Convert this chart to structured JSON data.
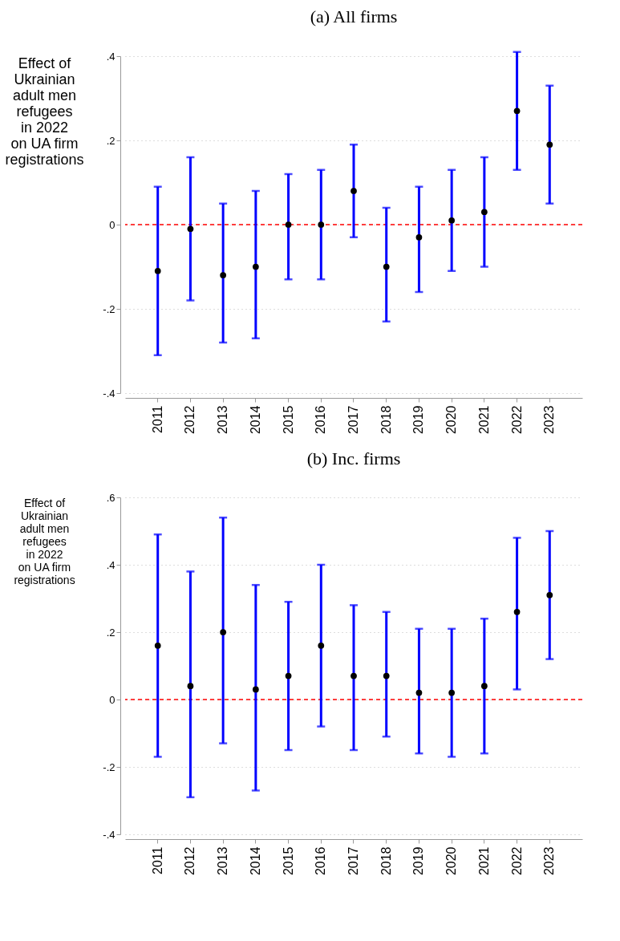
{
  "chart_data": [
    {
      "type": "scatter",
      "title": "(a) All firms",
      "ylabel": "Effect of\nUkrainian\nadult men\nrefugees\nin 2022\non UA firm\nregistrations",
      "categories": [
        "2011",
        "2012",
        "2013",
        "2014",
        "2015",
        "2016",
        "2017",
        "2018",
        "2019",
        "2020",
        "2021",
        "2022",
        "2023"
      ],
      "series": [
        {
          "color": "#000000",
          "values": [
            -0.11,
            -0.01,
            -0.12,
            -0.1,
            0.0,
            0.0,
            0.08,
            -0.1,
            -0.03,
            0.01,
            0.03,
            0.27,
            0.19
          ],
          "errors": [
            [
              -0.31,
              0.09
            ],
            [
              -0.18,
              0.16
            ],
            [
              -0.28,
              0.05
            ],
            [
              -0.27,
              0.08
            ],
            [
              -0.13,
              0.12
            ],
            [
              -0.13,
              0.13
            ],
            [
              -0.03,
              0.19
            ],
            [
              -0.23,
              0.04
            ],
            [
              -0.16,
              0.09
            ],
            [
              -0.11,
              0.13
            ],
            [
              -0.1,
              0.16
            ],
            [
              0.13,
              0.41
            ],
            [
              0.05,
              0.33
            ]
          ]
        }
      ],
      "ylim": [
        -0.4,
        0.4
      ],
      "yticks": [
        {
          "value": -0.4,
          "label": "-.4"
        },
        {
          "value": -0.2,
          "label": "-.2"
        },
        0,
        {
          "value": 0.2,
          "label": ".2"
        },
        {
          "value": 0.4,
          "label": ".4"
        }
      ],
      "grid": "y",
      "marker": "circle",
      "ref_lines": [
        {
          "axis": "y",
          "value": 0,
          "color": "#ff0000",
          "line_style": "dashed"
        }
      ]
    },
    {
      "type": "scatter",
      "title": "(b) Inc. firms",
      "ylabel": "Effect of\nUkrainian\nadult men\nrefugees\nin 2022\non UA firm\nregistrations",
      "categories": [
        "2011",
        "2012",
        "2013",
        "2014",
        "2015",
        "2016",
        "2017",
        "2018",
        "2019",
        "2020",
        "2021",
        "2022",
        "2023"
      ],
      "series": [
        {
          "color": "#000000",
          "values": [
            0.16,
            0.04,
            0.2,
            0.03,
            0.07,
            0.16,
            0.07,
            0.07,
            0.02,
            0.02,
            0.04,
            0.26,
            0.31
          ],
          "errors": [
            [
              -0.17,
              0.49
            ],
            [
              -0.29,
              0.38
            ],
            [
              -0.13,
              0.54
            ],
            [
              -0.27,
              0.34
            ],
            [
              -0.15,
              0.29
            ],
            [
              -0.08,
              0.4
            ],
            [
              -0.15,
              0.28
            ],
            [
              -0.11,
              0.26
            ],
            [
              -0.16,
              0.21
            ],
            [
              -0.17,
              0.21
            ],
            [
              -0.16,
              0.24
            ],
            [
              0.03,
              0.48
            ],
            [
              0.12,
              0.5
            ]
          ]
        }
      ],
      "ylim": [
        -0.4,
        0.6
      ],
      "yticks": [
        {
          "value": -0.4,
          "label": "-.4"
        },
        {
          "value": -0.2,
          "label": "-.2"
        },
        0,
        {
          "value": 0.2,
          "label": ".2"
        },
        {
          "value": 0.4,
          "label": ".4"
        },
        {
          "value": 0.6,
          "label": ".6"
        }
      ],
      "grid": "y",
      "marker": "circle",
      "ref_lines": [
        {
          "axis": "y",
          "value": 0,
          "color": "#ff0000",
          "line_style": "dashed"
        }
      ]
    }
  ]
}
